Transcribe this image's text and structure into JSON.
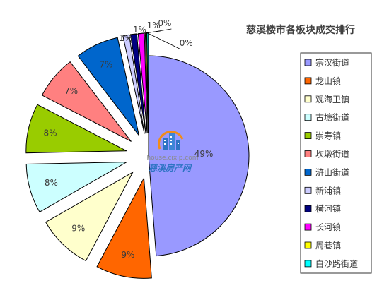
{
  "chart_data": {
    "type": "pie",
    "title": "慈溪楼市各板块成交排行",
    "categories": [
      "宗汉街道",
      "龙山镇",
      "观海卫镇",
      "古塘街道",
      "崇寿镇",
      "坎墩街道",
      "浒山街道",
      "新浦镇",
      "横河镇",
      "长河镇",
      "周巷镇",
      "白沙路街道"
    ],
    "values": [
      49,
      9,
      9,
      8,
      8,
      7,
      7,
      1,
      1,
      1,
      0,
      0
    ],
    "value_labels": [
      "49%",
      "9%",
      "9%",
      "8%",
      "8%",
      "7%",
      "7%",
      "1%",
      "1%",
      "1%",
      "0%",
      "0%"
    ],
    "colors": [
      "#9999ff",
      "#ff6600",
      "#ffffcc",
      "#ccffff",
      "#99cc00",
      "#ff8080",
      "#0066cc",
      "#ccccff",
      "#000080",
      "#ff00ff",
      "#ffff00",
      "#00ffff"
    ],
    "exploded": true,
    "legend_position": "right"
  },
  "watermark": {
    "url": "house.cixip.com",
    "name": "慈溪房产网",
    "icon": "building-logo-icon"
  }
}
